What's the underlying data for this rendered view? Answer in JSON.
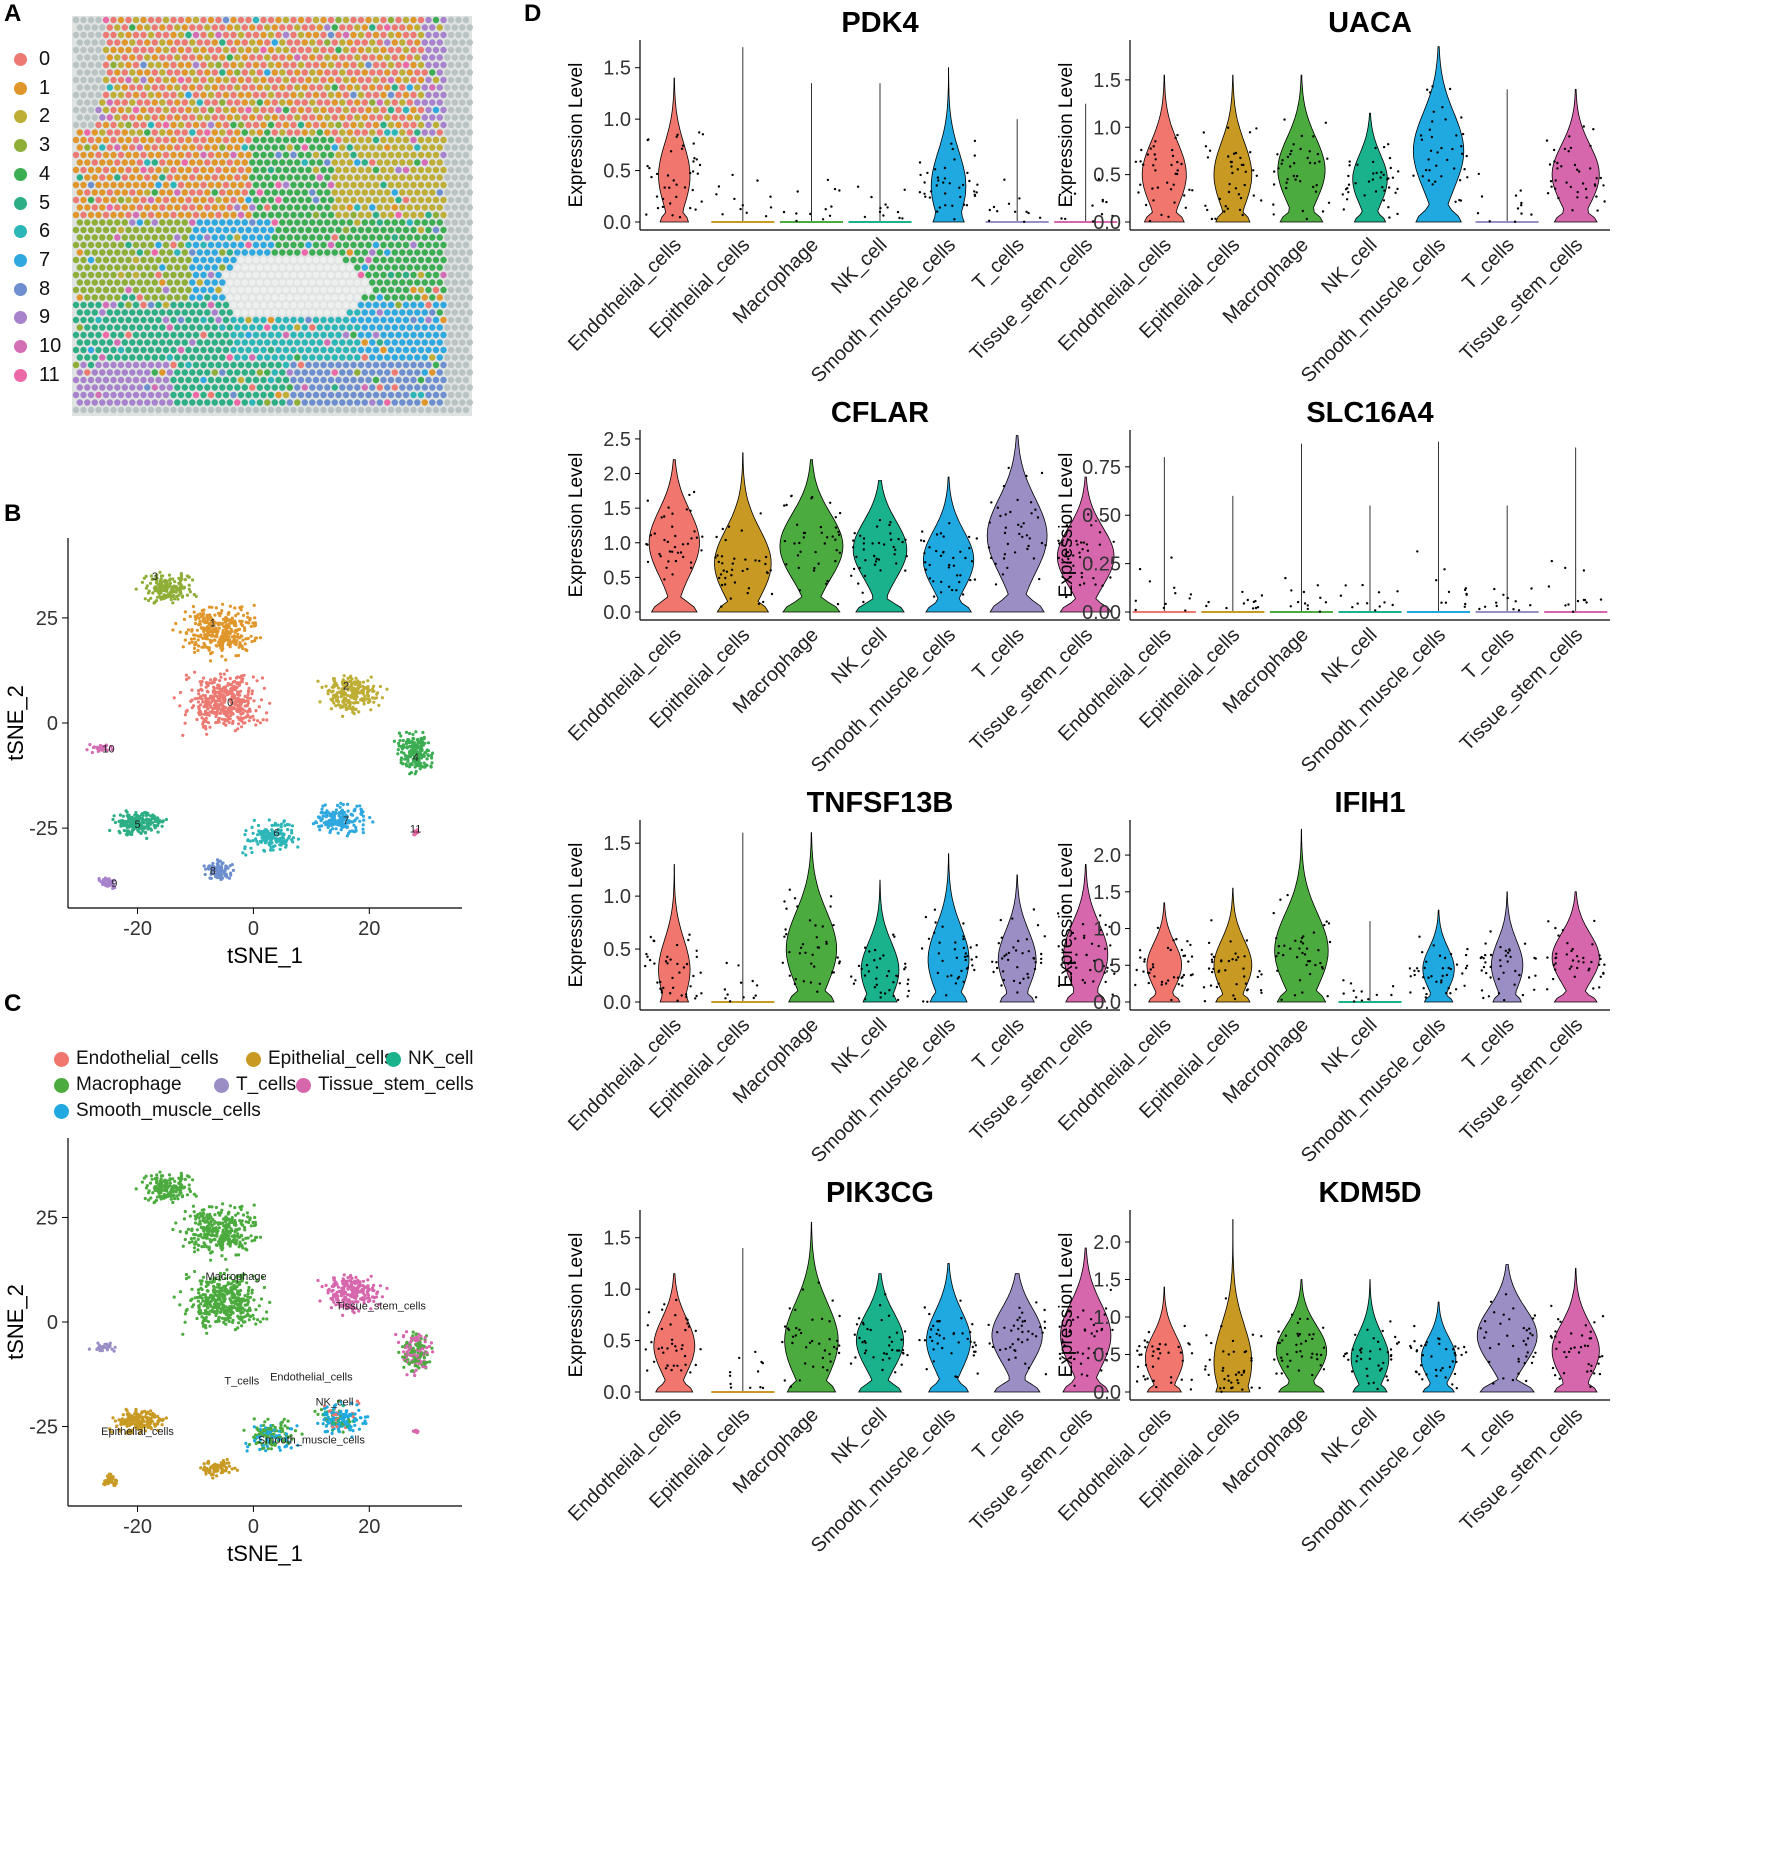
{
  "panels": {
    "A": {
      "letter": "A"
    },
    "B": {
      "letter": "B"
    },
    "C": {
      "letter": "C"
    },
    "D": {
      "letter": "D"
    }
  },
  "colors": {
    "clusters": [
      "#ec7a73",
      "#e0962a",
      "#bfae35",
      "#8fae37",
      "#3cad52",
      "#2dae84",
      "#2db6b8",
      "#2fa8df",
      "#6e8fcf",
      "#a882cc",
      "#d36db4",
      "#ec68a6"
    ],
    "cell_types": {
      "Endothelial_cells": "#f1766d",
      "Epithelial_cells": "#c89a23",
      "NK_cell": "#1ab28c",
      "Macrophage": "#4cab3e",
      "T_cells": "#9b8ec5",
      "Tissue_stem_cells": "#d767ad",
      "Smooth_muscle_cells": "#20a9e0"
    }
  },
  "chart_data": [
    {
      "panel": "A",
      "type": "scatter",
      "title": "",
      "legend": [
        "0",
        "1",
        "2",
        "3",
        "4",
        "5",
        "6",
        "7",
        "8",
        "9",
        "10",
        "11"
      ],
      "legend_placement": "left"
    },
    {
      "panel": "B",
      "type": "scatter",
      "xlabel": "tSNE_1",
      "ylabel": "tSNE_2",
      "xlim": [
        -32,
        36
      ],
      "ylim": [
        -44,
        44
      ],
      "x_ticks": [
        -20,
        0,
        20
      ],
      "y_ticks": [
        25,
        0,
        -25
      ],
      "cluster_labels": [
        {
          "label": "0",
          "x": -4,
          "y": 4
        },
        {
          "label": "1",
          "x": -7,
          "y": 23
        },
        {
          "label": "2",
          "x": 16,
          "y": 8
        },
        {
          "label": "3",
          "x": -17,
          "y": 34
        },
        {
          "label": "4",
          "x": 28,
          "y": -9
        },
        {
          "label": "5",
          "x": -20,
          "y": -25
        },
        {
          "label": "6",
          "x": 4,
          "y": -27
        },
        {
          "label": "7",
          "x": 16,
          "y": -24
        },
        {
          "label": "8",
          "x": -7,
          "y": -36
        },
        {
          "label": "9",
          "x": -24,
          "y": -39
        },
        {
          "label": "10",
          "x": -25,
          "y": -7
        },
        {
          "label": "11",
          "x": 28,
          "y": -26
        }
      ]
    },
    {
      "panel": "C",
      "type": "scatter",
      "xlabel": "tSNE_1",
      "ylabel": "tSNE_2",
      "xlim": [
        -32,
        36
      ],
      "ylim": [
        -44,
        44
      ],
      "x_ticks": [
        -20,
        0,
        20
      ],
      "y_ticks": [
        25,
        0,
        -25
      ],
      "legend": [
        "Endothelial_cells",
        "Epithelial_cells",
        "NK_cell",
        "Macrophage",
        "T_cells",
        "Tissue_stem_cells",
        "Smooth_muscle_cells"
      ],
      "legend_placement": "top",
      "cell_labels": [
        {
          "label": "Macrophage",
          "x": -3,
          "y": 10
        },
        {
          "label": "Tissue_stem_cells",
          "x": 22,
          "y": 3
        },
        {
          "label": "T_cells",
          "x": -2,
          "y": -15
        },
        {
          "label": "Endothelial_cells",
          "x": 10,
          "y": -14
        },
        {
          "label": "NK_cell",
          "x": 14,
          "y": -20
        },
        {
          "label": "Epithelial_cells",
          "x": -20,
          "y": -27
        },
        {
          "label": "Smooth_muscle_cells",
          "x": 10,
          "y": -29
        }
      ]
    },
    {
      "panel": "D",
      "type": "violin",
      "ylabel": "Expression Level",
      "categories": [
        "Endothelial_cells",
        "Epithelial_cells",
        "Macrophage",
        "NK_cell",
        "Smooth_muscle_cells",
        "T_cells",
        "Tissue_stem_cells"
      ],
      "genes": [
        {
          "gene": "PDK4",
          "yticks": [
            0.0,
            0.5,
            1.0,
            1.5
          ],
          "ymax": 1.75,
          "max": [
            1.4,
            1.7,
            1.35,
            1.35,
            1.5,
            1.0,
            1.15
          ],
          "centers": [
            0.45,
            0.0,
            0.0,
            0.0,
            0.35,
            0.0,
            0.0
          ],
          "widths": [
            0.5,
            0.0,
            0.0,
            0.0,
            0.55,
            0.0,
            0.0
          ]
        },
        {
          "gene": "UACA",
          "yticks": [
            0.0,
            0.5,
            1.0,
            1.5
          ],
          "ymax": 1.9,
          "max": [
            1.55,
            1.55,
            1.55,
            1.15,
            1.85,
            1.4,
            1.4
          ],
          "centers": [
            0.5,
            0.5,
            0.55,
            0.45,
            0.75,
            0.0,
            0.5
          ],
          "widths": [
            0.7,
            0.6,
            0.75,
            0.55,
            0.8,
            0.0,
            0.75
          ]
        },
        {
          "gene": "CFLAR",
          "yticks": [
            0.0,
            0.5,
            1.0,
            1.5,
            2.0,
            2.5
          ],
          "ymax": 2.6,
          "max": [
            2.2,
            2.3,
            2.2,
            1.9,
            1.95,
            2.55,
            1.95
          ],
          "centers": [
            1.0,
            0.7,
            0.95,
            0.9,
            0.75,
            1.1,
            0.8
          ],
          "widths": [
            0.8,
            0.9,
            1.0,
            0.85,
            0.8,
            0.95,
            0.9
          ]
        },
        {
          "gene": "SLC16A4",
          "yticks": [
            0.0,
            0.25,
            0.5,
            0.75
          ],
          "ymax": 0.93,
          "max": [
            0.8,
            0.6,
            0.87,
            0.55,
            0.88,
            0.55,
            0.85
          ],
          "centers": [
            0.0,
            0.0,
            0.0,
            0.0,
            0.0,
            0.0,
            0.0
          ],
          "widths": [
            0.0,
            0.0,
            0.0,
            0.0,
            0.0,
            0.0,
            0.0
          ]
        },
        {
          "gene": "TNFSF13B",
          "yticks": [
            0.0,
            0.5,
            1.0,
            1.5
          ],
          "ymax": 1.7,
          "max": [
            1.3,
            1.6,
            1.6,
            1.15,
            1.4,
            1.2,
            1.3
          ],
          "centers": [
            0.3,
            0.0,
            0.5,
            0.3,
            0.4,
            0.4,
            0.45
          ],
          "widths": [
            0.5,
            0.0,
            0.8,
            0.6,
            0.65,
            0.6,
            0.7
          ]
        },
        {
          "gene": "IFIH1",
          "yticks": [
            0.0,
            0.5,
            1.0,
            1.5,
            2.0
          ],
          "ymax": 2.45,
          "max": [
            1.35,
            1.55,
            2.35,
            1.1,
            1.25,
            1.5,
            1.5
          ],
          "centers": [
            0.5,
            0.5,
            0.7,
            0.0,
            0.45,
            0.5,
            0.6
          ],
          "widths": [
            0.55,
            0.6,
            0.85,
            0.0,
            0.5,
            0.5,
            0.75
          ]
        },
        {
          "gene": "PIK3CG",
          "yticks": [
            0.0,
            0.5,
            1.0,
            1.5
          ],
          "ymax": 1.75,
          "max": [
            1.15,
            1.4,
            1.65,
            1.15,
            1.25,
            1.15,
            1.4
          ],
          "centers": [
            0.45,
            0.0,
            0.5,
            0.5,
            0.5,
            0.55,
            0.55
          ],
          "widths": [
            0.65,
            0.0,
            0.85,
            0.75,
            0.7,
            0.8,
            0.8
          ]
        },
        {
          "gene": "KDM5D",
          "yticks": [
            0.0,
            0.5,
            1.0,
            1.5,
            2.0
          ],
          "ymax": 2.4,
          "max": [
            1.4,
            2.3,
            1.5,
            1.5,
            1.2,
            1.7,
            1.65
          ],
          "centers": [
            0.45,
            0.4,
            0.55,
            0.45,
            0.45,
            0.75,
            0.55
          ],
          "widths": [
            0.6,
            0.6,
            0.8,
            0.6,
            0.55,
            0.95,
            0.75
          ]
        }
      ]
    }
  ]
}
